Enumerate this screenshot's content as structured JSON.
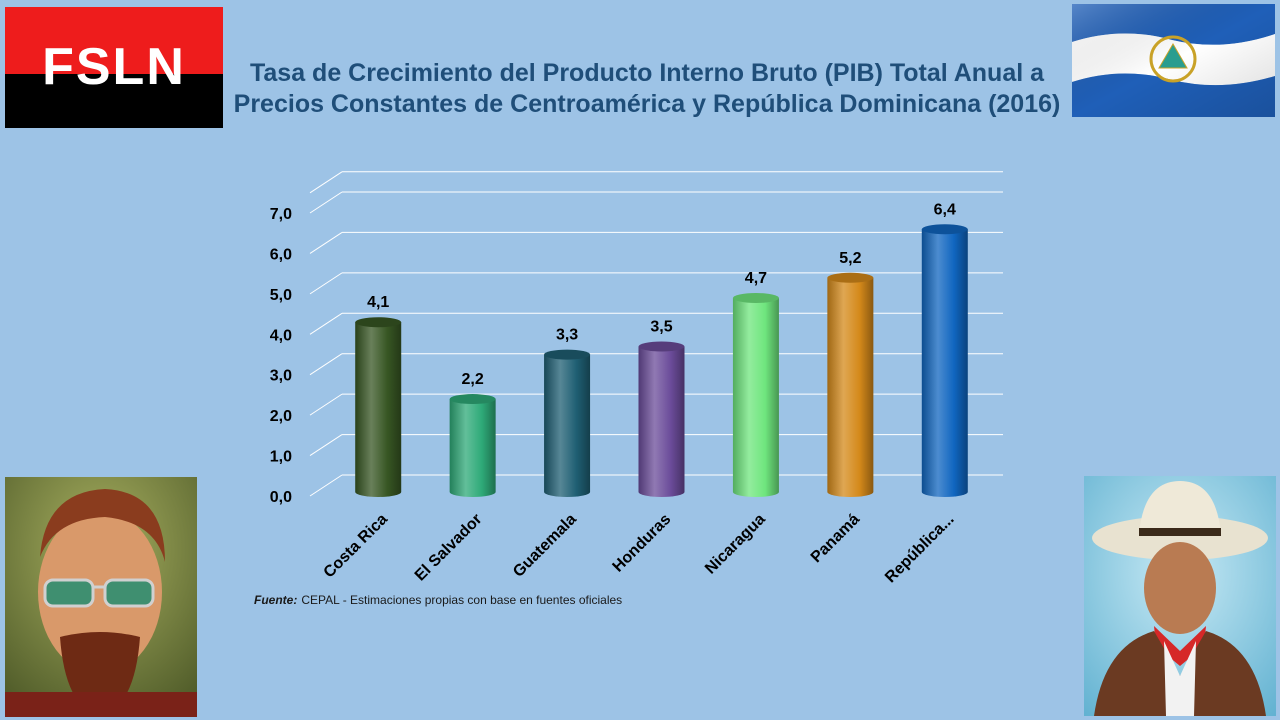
{
  "logo": {
    "text": "FSLN"
  },
  "title": "Tasa de Crecimiento del Producto Interno Bruto (PIB) Total Anual a Precios Constantes de Centroamérica y República Dominicana (2016)",
  "source": {
    "label": "Fuente:",
    "text": "CEPAL - Estimaciones propias con base en fuentes oficiales"
  },
  "chart_data": {
    "type": "bar",
    "title": "Tasa de Crecimiento del Producto Interno Bruto (PIB) Total Anual a Precios Constantes de Centroamérica y República Dominicana (2016)",
    "categories": [
      "Costa Rica",
      "El Salvador",
      "Guatemala",
      "Honduras",
      "Nicaragua",
      "Panamá",
      "República..."
    ],
    "values": [
      4.1,
      2.2,
      3.3,
      3.5,
      4.7,
      5.2,
      6.4
    ],
    "data_labels": [
      "4,1",
      "2,2",
      "3,3",
      "3,5",
      "4,7",
      "5,2",
      "6,4"
    ],
    "ylim": [
      0,
      7
    ],
    "yticks": [
      "0,0",
      "1,0",
      "2,0",
      "3,0",
      "4,0",
      "5,0",
      "6,0",
      "7,0"
    ],
    "xlabel": "",
    "ylabel": "",
    "grid": true,
    "legend": "none",
    "colors": [
      "#375623",
      "#2eaa78",
      "#1f5f73",
      "#6b4c9a",
      "#6fe67e",
      "#d4891a",
      "#1066c0"
    ]
  },
  "flag_colors": {
    "blue": "#1f5fb8",
    "white": "#ffffff"
  }
}
